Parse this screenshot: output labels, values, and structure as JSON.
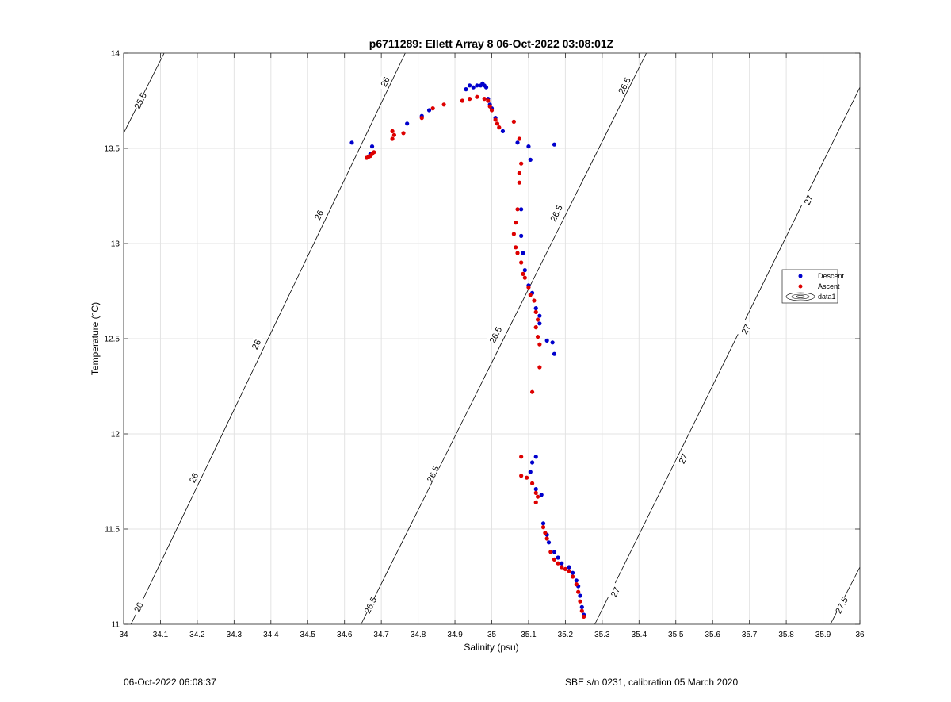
{
  "footer": {
    "left": "06-Oct-2022 06:08:37",
    "right": "SBE s/n 0231, calibration 05 March 2020"
  },
  "chart_data": {
    "type": "scatter",
    "title": "p6711289: Ellett Array 8 06-Oct-2022 03:08:01Z",
    "xlabel": "Salinity (psu)",
    "ylabel": "Temperature (°C)",
    "xlim": [
      34,
      36
    ],
    "ylim": [
      11,
      14
    ],
    "x_ticks": [
      "34",
      "34.1",
      "34.2",
      "34.3",
      "34.4",
      "34.5",
      "34.6",
      "34.7",
      "34.8",
      "34.9",
      "35",
      "35.1",
      "35.2",
      "35.3",
      "35.4",
      "35.5",
      "35.6",
      "35.7",
      "35.8",
      "35.9",
      "36"
    ],
    "y_ticks": [
      "11",
      "11.5",
      "12",
      "12.5",
      "13",
      "13.5",
      "14"
    ],
    "grid": true,
    "legend_position": "right",
    "legend": [
      "Descent",
      "Ascent",
      "data1"
    ],
    "colors": {
      "descent": "#0000cc",
      "ascent": "#dd0000",
      "contour": "#000000",
      "grid": "#e3e3e3"
    },
    "series": [
      {
        "name": "Descent",
        "points": [
          [
            34.62,
            13.53
          ],
          [
            34.67,
            13.47
          ],
          [
            34.675,
            13.51
          ],
          [
            34.77,
            13.63
          ],
          [
            34.81,
            13.67
          ],
          [
            34.83,
            13.7
          ],
          [
            34.93,
            13.81
          ],
          [
            34.94,
            13.83
          ],
          [
            34.95,
            13.82
          ],
          [
            34.96,
            13.83
          ],
          [
            34.97,
            13.83
          ],
          [
            34.975,
            13.84
          ],
          [
            34.98,
            13.83
          ],
          [
            34.985,
            13.82
          ],
          [
            34.99,
            13.76
          ],
          [
            34.995,
            13.73
          ],
          [
            35.0,
            13.71
          ],
          [
            35.01,
            13.66
          ],
          [
            35.03,
            13.59
          ],
          [
            35.07,
            13.53
          ],
          [
            35.1,
            13.51
          ],
          [
            35.105,
            13.44
          ],
          [
            35.17,
            13.52
          ],
          [
            35.08,
            13.18
          ],
          [
            35.08,
            13.04
          ],
          [
            35.085,
            12.95
          ],
          [
            35.09,
            12.86
          ],
          [
            35.1,
            12.78
          ],
          [
            35.11,
            12.74
          ],
          [
            35.12,
            12.66
          ],
          [
            35.13,
            12.62
          ],
          [
            35.13,
            12.58
          ],
          [
            35.15,
            12.49
          ],
          [
            35.165,
            12.48
          ],
          [
            35.17,
            12.42
          ],
          [
            35.12,
            11.88
          ],
          [
            35.11,
            11.85
          ],
          [
            35.105,
            11.8
          ],
          [
            35.12,
            11.71
          ],
          [
            35.135,
            11.68
          ],
          [
            35.14,
            11.53
          ],
          [
            35.15,
            11.47
          ],
          [
            35.155,
            11.43
          ],
          [
            35.17,
            11.38
          ],
          [
            35.18,
            11.35
          ],
          [
            35.19,
            11.32
          ],
          [
            35.21,
            11.3
          ],
          [
            35.22,
            11.27
          ],
          [
            35.23,
            11.23
          ],
          [
            35.235,
            11.2
          ],
          [
            35.24,
            11.15
          ],
          [
            35.245,
            11.09
          ],
          [
            35.25,
            11.05
          ]
        ]
      },
      {
        "name": "Ascent",
        "points": [
          [
            34.66,
            13.45
          ],
          [
            34.665,
            13.455
          ],
          [
            34.67,
            13.46
          ],
          [
            34.675,
            13.47
          ],
          [
            34.68,
            13.48
          ],
          [
            34.73,
            13.55
          ],
          [
            34.735,
            13.57
          ],
          [
            34.73,
            13.59
          ],
          [
            34.76,
            13.58
          ],
          [
            34.81,
            13.66
          ],
          [
            34.84,
            13.71
          ],
          [
            34.87,
            13.73
          ],
          [
            34.92,
            13.75
          ],
          [
            34.94,
            13.76
          ],
          [
            34.96,
            13.77
          ],
          [
            34.98,
            13.76
          ],
          [
            34.99,
            13.75
          ],
          [
            34.995,
            13.72
          ],
          [
            35.0,
            13.7
          ],
          [
            35.01,
            13.65
          ],
          [
            35.015,
            13.63
          ],
          [
            35.02,
            13.61
          ],
          [
            35.06,
            13.64
          ],
          [
            35.075,
            13.55
          ],
          [
            35.08,
            13.42
          ],
          [
            35.075,
            13.37
          ],
          [
            35.075,
            13.32
          ],
          [
            35.07,
            13.18
          ],
          [
            35.065,
            13.11
          ],
          [
            35.06,
            13.05
          ],
          [
            35.065,
            12.98
          ],
          [
            35.07,
            12.95
          ],
          [
            35.08,
            12.9
          ],
          [
            35.085,
            12.84
          ],
          [
            35.09,
            12.82
          ],
          [
            35.1,
            12.77
          ],
          [
            35.105,
            12.73
          ],
          [
            35.115,
            12.7
          ],
          [
            35.12,
            12.64
          ],
          [
            35.125,
            12.6
          ],
          [
            35.12,
            12.56
          ],
          [
            35.125,
            12.51
          ],
          [
            35.13,
            12.47
          ],
          [
            35.13,
            12.35
          ],
          [
            35.11,
            12.22
          ],
          [
            35.08,
            11.88
          ],
          [
            35.08,
            11.78
          ],
          [
            35.095,
            11.77
          ],
          [
            35.11,
            11.74
          ],
          [
            35.12,
            11.69
          ],
          [
            35.125,
            11.67
          ],
          [
            35.12,
            11.64
          ],
          [
            35.14,
            11.51
          ],
          [
            35.145,
            11.48
          ],
          [
            35.15,
            11.45
          ],
          [
            35.16,
            11.38
          ],
          [
            35.17,
            11.34
          ],
          [
            35.18,
            11.32
          ],
          [
            35.19,
            11.3
          ],
          [
            35.2,
            11.29
          ],
          [
            35.21,
            11.28
          ],
          [
            35.22,
            11.25
          ],
          [
            35.23,
            11.21
          ],
          [
            35.235,
            11.17
          ],
          [
            35.24,
            11.12
          ],
          [
            35.245,
            11.07
          ],
          [
            35.25,
            11.04
          ]
        ]
      }
    ],
    "contours": [
      {
        "level": "25.5",
        "points": [
          [
            34.0,
            13.58
          ],
          [
            34.11,
            14.0
          ]
        ],
        "labels": [
          [
            34.045,
            13.75
          ]
        ]
      },
      {
        "level": "26",
        "points": [
          [
            34.02,
            11.0
          ],
          [
            34.765,
            14.0
          ]
        ],
        "labels": [
          [
            34.04,
            11.09
          ],
          [
            34.19,
            11.77
          ],
          [
            34.36,
            12.47
          ],
          [
            34.53,
            13.15
          ],
          [
            34.71,
            13.85
          ]
        ]
      },
      {
        "level": "26.5",
        "points": [
          [
            34.645,
            11.0
          ],
          [
            35.42,
            14.0
          ]
        ],
        "labels": [
          [
            34.67,
            11.1
          ],
          [
            34.84,
            11.79
          ],
          [
            35.01,
            12.52
          ],
          [
            35.175,
            13.16
          ],
          [
            35.36,
            13.83
          ]
        ]
      },
      {
        "level": "27",
        "points": [
          [
            35.28,
            11.0
          ],
          [
            36.0,
            13.82
          ]
        ],
        "labels": [
          [
            35.335,
            11.17
          ],
          [
            35.52,
            11.87
          ],
          [
            35.69,
            12.55
          ],
          [
            35.86,
            13.23
          ]
        ]
      },
      {
        "level": "27.5",
        "points": [
          [
            35.92,
            11.0
          ],
          [
            36.0,
            11.3
          ]
        ],
        "labels": [
          [
            35.95,
            11.1
          ]
        ]
      }
    ]
  }
}
